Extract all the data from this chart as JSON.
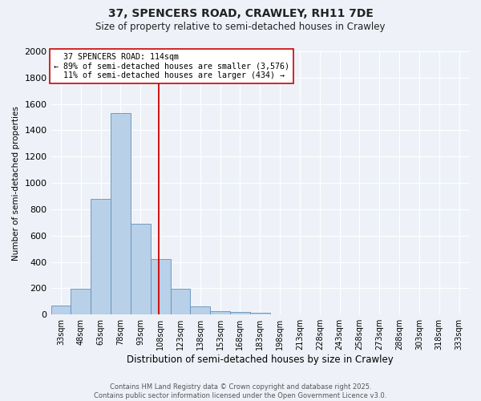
{
  "title1": "37, SPENCERS ROAD, CRAWLEY, RH11 7DE",
  "title2": "Size of property relative to semi-detached houses in Crawley",
  "xlabel": "Distribution of semi-detached houses by size in Crawley",
  "ylabel": "Number of semi-detached properties",
  "property_label": "37 SPENCERS ROAD: 114sqm",
  "pct_smaller": 89,
  "count_smaller": 3576,
  "pct_larger": 11,
  "count_larger": 434,
  "bin_labels": [
    "33sqm",
    "48sqm",
    "63sqm",
    "78sqm",
    "93sqm",
    "108sqm",
    "123sqm",
    "138sqm",
    "153sqm",
    "168sqm",
    "183sqm",
    "198sqm",
    "213sqm",
    "228sqm",
    "243sqm",
    "258sqm",
    "273sqm",
    "288sqm",
    "303sqm",
    "318sqm",
    "333sqm"
  ],
  "bin_edges": [
    33,
    48,
    63,
    78,
    93,
    108,
    123,
    138,
    153,
    168,
    183,
    198,
    213,
    228,
    243,
    258,
    273,
    288,
    303,
    318,
    333
  ],
  "bin_counts": [
    70,
    198,
    878,
    1530,
    688,
    420,
    196,
    60,
    25,
    20,
    15,
    0,
    0,
    0,
    0,
    0,
    0,
    0,
    0,
    0,
    0
  ],
  "bar_color": "#b8d0e8",
  "bar_edge_color": "#6090bb",
  "red_line_x": 114,
  "ylim": [
    0,
    2000
  ],
  "yticks": [
    0,
    200,
    400,
    600,
    800,
    1000,
    1200,
    1400,
    1600,
    1800,
    2000
  ],
  "annotation_box_color": "#ffffff",
  "annotation_box_edge": "#cc0000",
  "footer_text": "Contains HM Land Registry data © Crown copyright and database right 2025.\nContains public sector information licensed under the Open Government Licence v3.0.",
  "background_color": "#eef2f8",
  "grid_color": "#ffffff"
}
